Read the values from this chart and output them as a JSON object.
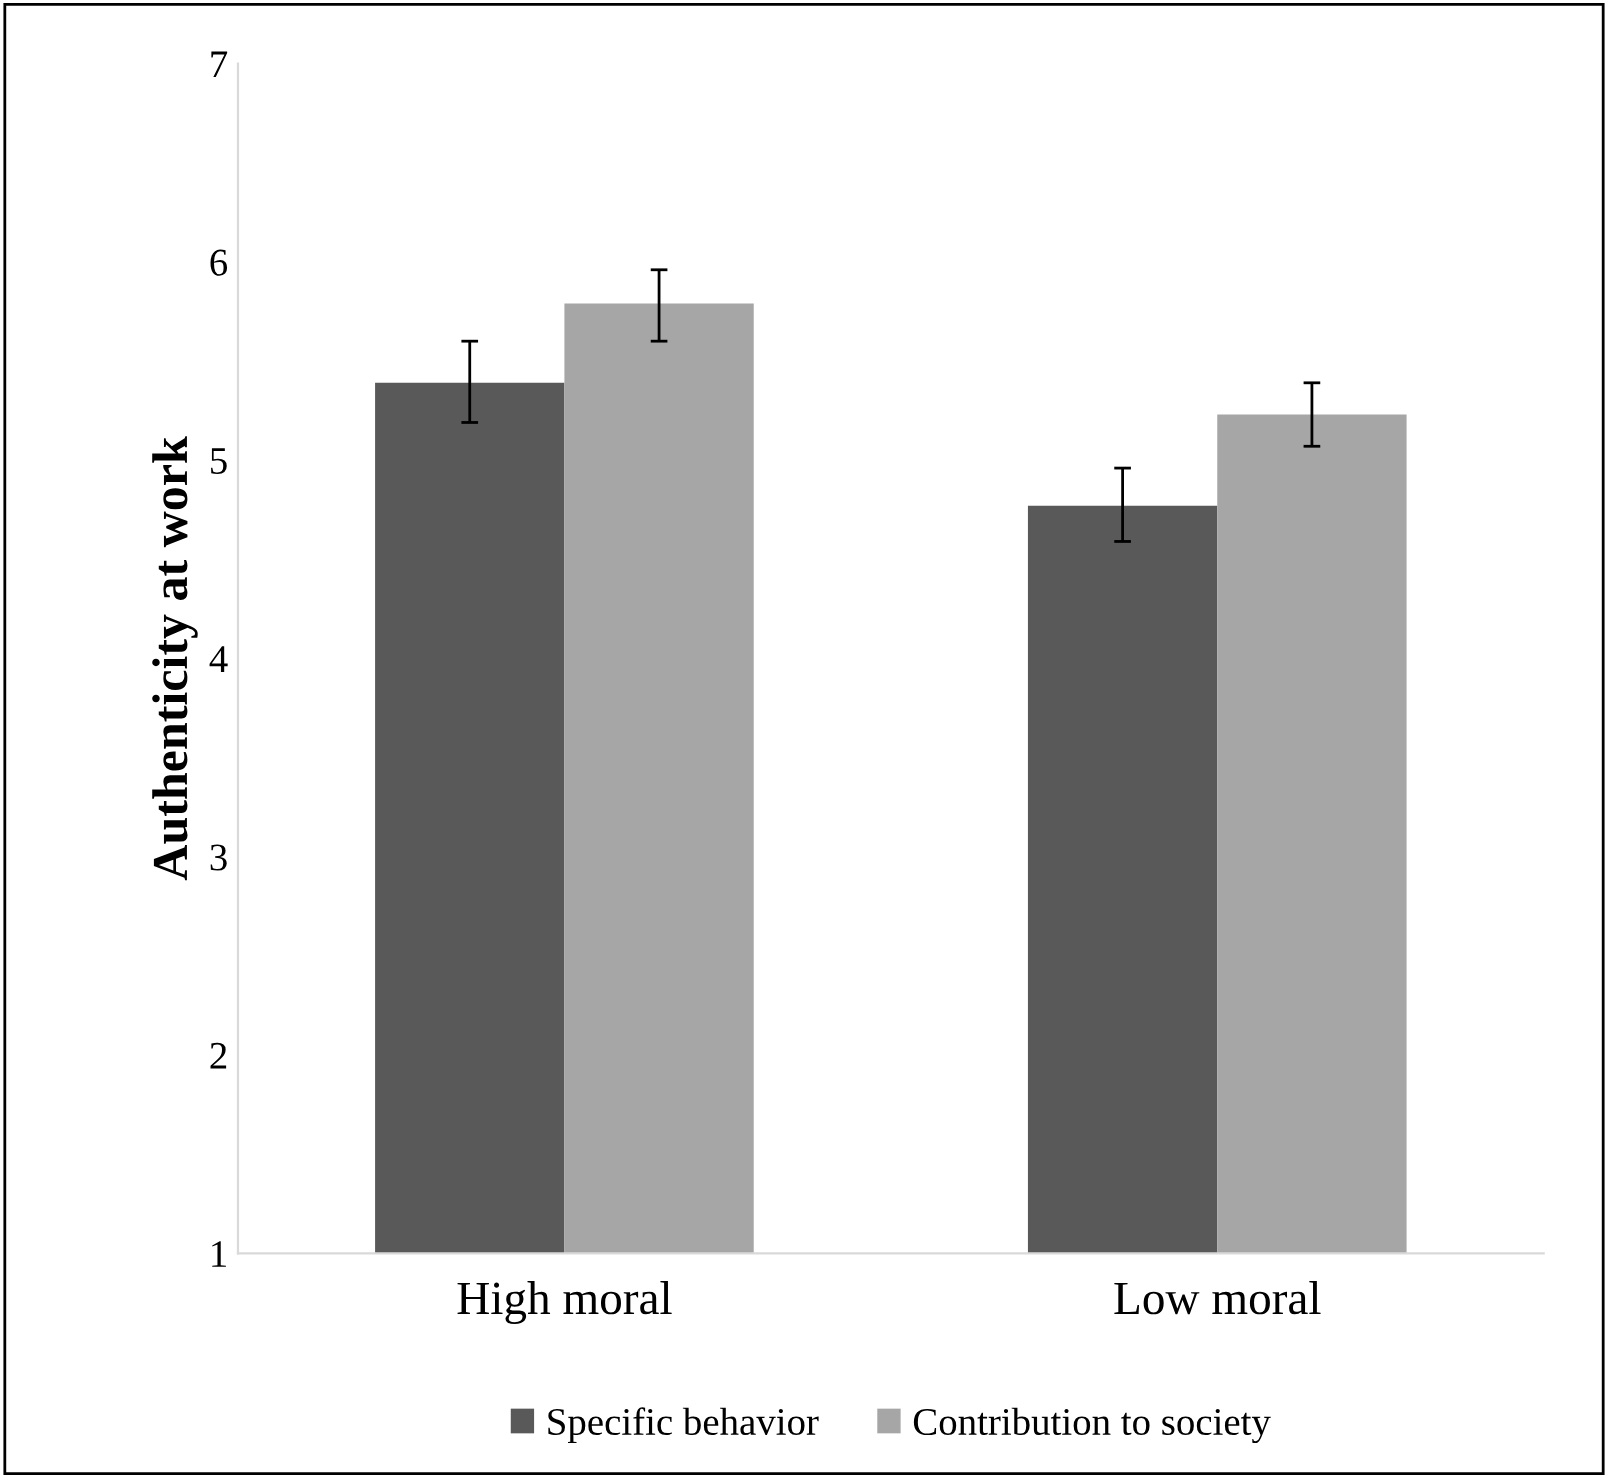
{
  "chart_data": {
    "type": "bar",
    "ylabel": "Authenticity at work",
    "categories": [
      "High moral",
      "Low moral"
    ],
    "series": [
      {
        "name": "Specific behavior",
        "color": "#595959",
        "values": [
          5.39,
          4.77
        ],
        "errors": [
          [
            5.19,
            5.6
          ],
          [
            4.59,
            4.96
          ]
        ]
      },
      {
        "name": "Contribution to society",
        "color": "#a6a6a6",
        "values": [
          5.79,
          5.23
        ],
        "errors": [
          [
            5.6,
            5.96
          ],
          [
            5.07,
            5.39
          ]
        ]
      }
    ],
    "ylim": [
      1,
      7
    ],
    "yticks": [
      1,
      2,
      3,
      4,
      5,
      6,
      7
    ],
    "grid": false,
    "legend": "bottom"
  }
}
